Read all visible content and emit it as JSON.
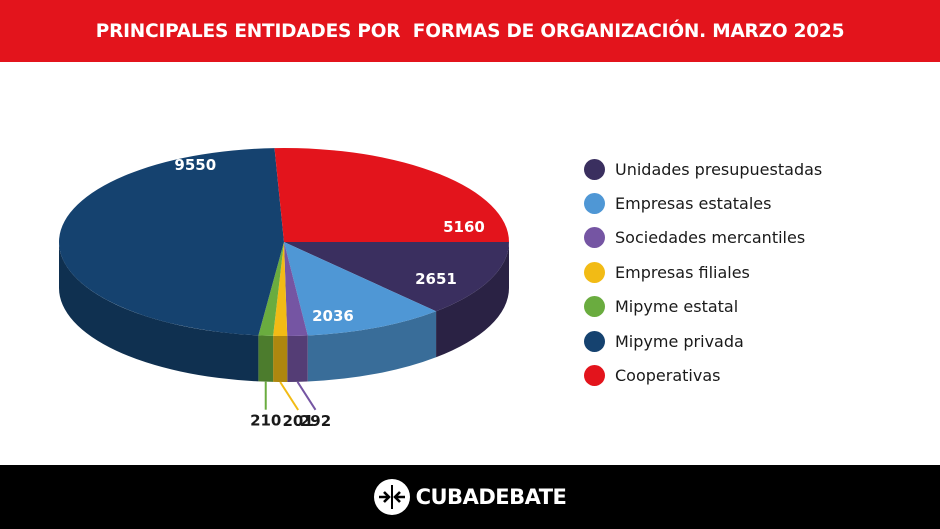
{
  "header": {
    "title": "PRINCIPALES ENTIDADES POR  FORMAS DE ORGANIZACIÓN. MARZO 2025"
  },
  "footer": {
    "brand": "CUBADEBATE"
  },
  "chart_data": {
    "type": "pie",
    "title": "PRINCIPALES ENTIDADES POR  FORMAS DE ORGANIZACIÓN. MARZO 2025",
    "legend_position": "right",
    "slices": [
      {
        "name": "Unidades presupuestadas",
        "value": 2651,
        "color": "#3a2f5f",
        "value_label": "2651"
      },
      {
        "name": "Empresas estatales",
        "value": 2036,
        "color": "#4f97d5",
        "value_label": "2036"
      },
      {
        "name": "Sociedades mercantiles",
        "value": 292,
        "color": "#7555a3",
        "value_label": "292"
      },
      {
        "name": "Empresas filiales",
        "value": 201,
        "color": "#f2bb15",
        "value_label": "201"
      },
      {
        "name": "Mipyme estatal",
        "value": 210,
        "color": "#6aac3f",
        "value_label": "210"
      },
      {
        "name": "Mipyme privada",
        "value": 9550,
        "color": "#15426f",
        "value_label": "9550"
      },
      {
        "name": "Cooperativas",
        "value": 5160,
        "color": "#e3141c",
        "value_label": "5160"
      }
    ]
  }
}
